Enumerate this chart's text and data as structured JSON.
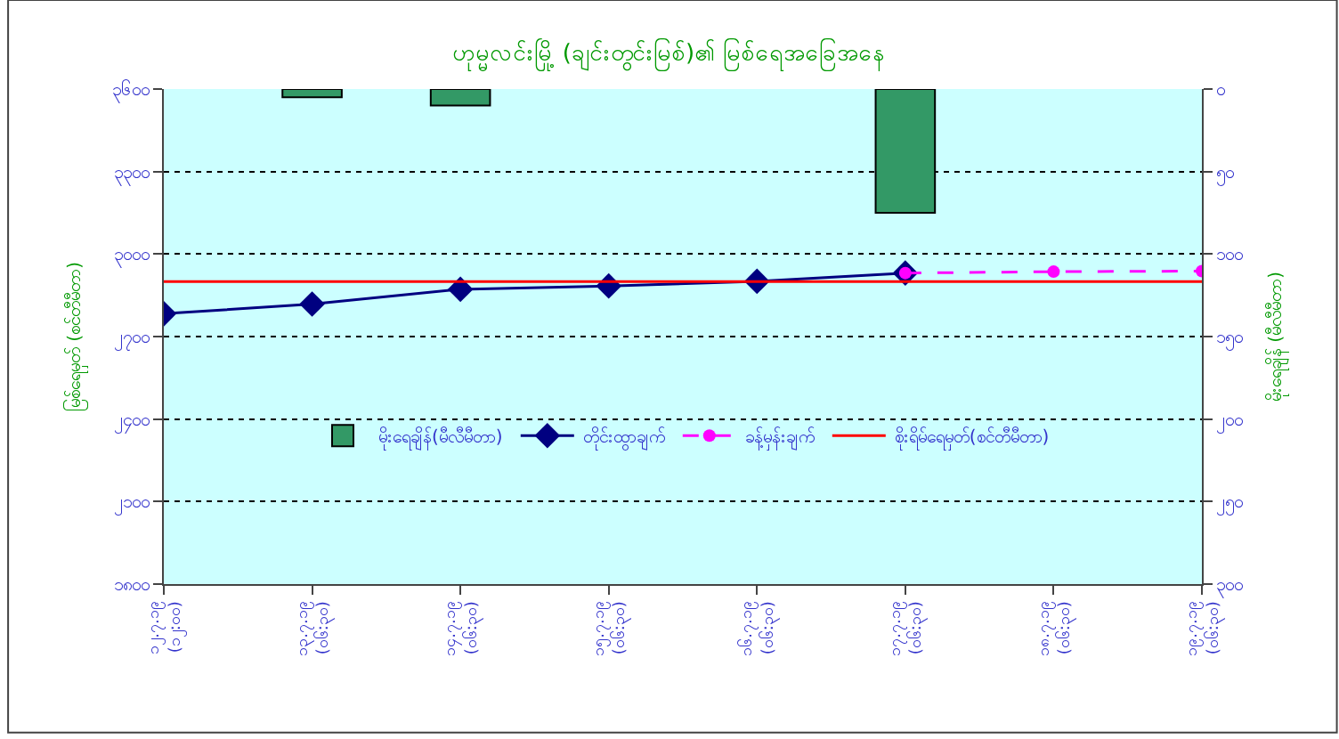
{
  "chart_data": {
    "type": "line",
    "title": "ဟုမ္မလင်းမြို့ (ချင်းတွင်းမြစ်)၏ မြစ်ရေအခြေအနေ",
    "ylabel": "မြစ်ရေမှတ် (စင်တီမီတာ)",
    "y2label": "မိုးရေချိန် (မီလီမီတာ)",
    "categories": [
      "၁၂.၇.၁၉ (၁၂:၀၀)",
      "၁၃.၇.၁၉ (၀၆:၃၀)",
      "၁၄.၇.၁၉ (၀၆:၃၀)",
      "၁၅.၇.၁၉ (၀၆:၃၀)",
      "၁၆.၇.၁၉ (၀၆:၃၀)",
      "၁၇.၇.၁၉ (၀၆:၃၀)",
      "၁၈.၇.၁၉ (၀၆:၃၀)",
      "၁၉.၇.၁၉ (၀၆:၃၀)"
    ],
    "series": [
      {
        "name": "မိုးရေချိန်(မီလီမီတာ)",
        "type": "bar",
        "axis": "y2",
        "color": "#339966",
        "values": [
          null,
          5,
          10,
          null,
          null,
          75,
          null,
          null
        ]
      },
      {
        "name": "တိုင်းထွာချက်",
        "color": "#000080",
        "marker": "diamond",
        "line_style": "solid",
        "values": [
          2783,
          2818,
          2872,
          2884,
          2901,
          2931,
          null,
          null
        ]
      },
      {
        "name": "ခန့်မှန်းချက်",
        "color": "#ff00ff",
        "marker": "circle",
        "line_style": "dashed",
        "values": [
          null,
          null,
          null,
          null,
          null,
          2931,
          2936,
          2938
        ]
      },
      {
        "name": "စိုးရိမ်ရေမှတ်(စင်တီမီတာ)",
        "color": "#ff0000",
        "marker": "none",
        "line_style": "solid",
        "values": [
          2900,
          2900,
          2900,
          2900,
          2900,
          2900,
          2900,
          2900
        ]
      }
    ],
    "ylim": [
      1800,
      3600
    ],
    "yticks": [
      {
        "value": 1800,
        "label": "၁၈၀၀"
      },
      {
        "value": 2100,
        "label": "၂၁၀၀"
      },
      {
        "value": 2400,
        "label": "၂၄၀၀"
      },
      {
        "value": 2700,
        "label": "၂၇၀၀"
      },
      {
        "value": 3000,
        "label": "၃၀၀၀"
      },
      {
        "value": 3300,
        "label": "၃၃၀၀"
      },
      {
        "value": 3600,
        "label": "၃၆၀၀"
      }
    ],
    "y2lim": [
      300,
      0
    ],
    "y2ticks": [
      {
        "value": 0,
        "label": "၀"
      },
      {
        "value": 50,
        "label": "၅၀"
      },
      {
        "value": 100,
        "label": "၁၀၀"
      },
      {
        "value": 150,
        "label": "၁၅၀"
      },
      {
        "value": 200,
        "label": "၂၀၀"
      },
      {
        "value": 250,
        "label": "၂၅၀"
      },
      {
        "value": 300,
        "label": "၃၀၀"
      }
    ],
    "grid": "y",
    "legend": "bottom"
  }
}
